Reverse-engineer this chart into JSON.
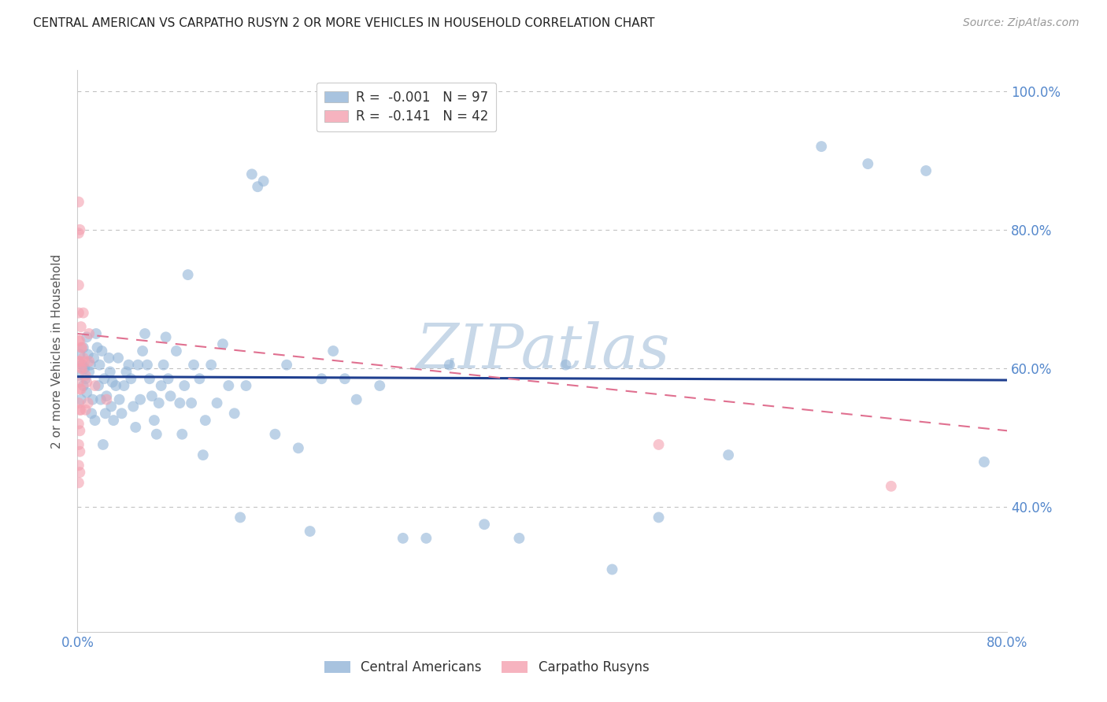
{
  "title": "CENTRAL AMERICAN VS CARPATHO RUSYN 2 OR MORE VEHICLES IN HOUSEHOLD CORRELATION CHART",
  "source": "Source: ZipAtlas.com",
  "ylabel": "2 or more Vehicles in Household",
  "x_min": 0.0,
  "x_max": 0.8,
  "y_min": 0.22,
  "y_max": 1.03,
  "x_ticks": [
    0.0,
    0.1,
    0.2,
    0.3,
    0.4,
    0.5,
    0.6,
    0.7,
    0.8
  ],
  "x_tick_labels": [
    "0.0%",
    "",
    "",
    "",
    "",
    "",
    "",
    "",
    "80.0%"
  ],
  "y_ticks": [
    0.4,
    0.6,
    0.8,
    1.0
  ],
  "y_tick_labels": [
    "40.0%",
    "60.0%",
    "80.0%",
    "100.0%"
  ],
  "legend_R1": "-0.001",
  "legend_N1": "97",
  "legend_R2": "-0.141",
  "legend_N2": "42",
  "color_blue": "#92B4D7",
  "color_pink": "#F4A0B0",
  "line_blue": "#1F3F8F",
  "line_pink": "#E07090",
  "grid_color": "#BBBBBB",
  "background": "#FFFFFF",
  "watermark": "ZIPatlas",
  "watermark_color": "#C8D8E8",
  "blue_scatter": [
    [
      0.001,
      0.59
    ],
    [
      0.002,
      0.62
    ],
    [
      0.003,
      0.555
    ],
    [
      0.004,
      0.605
    ],
    [
      0.005,
      0.63
    ],
    [
      0.005,
      0.575
    ],
    [
      0.006,
      0.6
    ],
    [
      0.007,
      0.585
    ],
    [
      0.008,
      0.645
    ],
    [
      0.008,
      0.565
    ],
    [
      0.009,
      0.62
    ],
    [
      0.01,
      0.595
    ],
    [
      0.011,
      0.605
    ],
    [
      0.012,
      0.535
    ],
    [
      0.013,
      0.555
    ],
    [
      0.014,
      0.615
    ],
    [
      0.015,
      0.525
    ],
    [
      0.016,
      0.65
    ],
    [
      0.017,
      0.63
    ],
    [
      0.018,
      0.575
    ],
    [
      0.019,
      0.605
    ],
    [
      0.02,
      0.555
    ],
    [
      0.021,
      0.625
    ],
    [
      0.022,
      0.49
    ],
    [
      0.023,
      0.585
    ],
    [
      0.024,
      0.535
    ],
    [
      0.025,
      0.56
    ],
    [
      0.027,
      0.615
    ],
    [
      0.028,
      0.595
    ],
    [
      0.029,
      0.545
    ],
    [
      0.03,
      0.58
    ],
    [
      0.031,
      0.525
    ],
    [
      0.033,
      0.575
    ],
    [
      0.035,
      0.615
    ],
    [
      0.036,
      0.555
    ],
    [
      0.038,
      0.535
    ],
    [
      0.04,
      0.575
    ],
    [
      0.042,
      0.595
    ],
    [
      0.044,
      0.605
    ],
    [
      0.046,
      0.585
    ],
    [
      0.048,
      0.545
    ],
    [
      0.05,
      0.515
    ],
    [
      0.052,
      0.605
    ],
    [
      0.054,
      0.555
    ],
    [
      0.056,
      0.625
    ],
    [
      0.058,
      0.65
    ],
    [
      0.06,
      0.605
    ],
    [
      0.062,
      0.585
    ],
    [
      0.064,
      0.56
    ],
    [
      0.066,
      0.525
    ],
    [
      0.068,
      0.505
    ],
    [
      0.07,
      0.55
    ],
    [
      0.072,
      0.575
    ],
    [
      0.074,
      0.605
    ],
    [
      0.076,
      0.645
    ],
    [
      0.078,
      0.585
    ],
    [
      0.08,
      0.56
    ],
    [
      0.085,
      0.625
    ],
    [
      0.088,
      0.55
    ],
    [
      0.09,
      0.505
    ],
    [
      0.092,
      0.575
    ],
    [
      0.095,
      0.735
    ],
    [
      0.098,
      0.55
    ],
    [
      0.1,
      0.605
    ],
    [
      0.105,
      0.585
    ],
    [
      0.108,
      0.475
    ],
    [
      0.11,
      0.525
    ],
    [
      0.115,
      0.605
    ],
    [
      0.12,
      0.55
    ],
    [
      0.125,
      0.635
    ],
    [
      0.13,
      0.575
    ],
    [
      0.135,
      0.535
    ],
    [
      0.14,
      0.385
    ],
    [
      0.145,
      0.575
    ],
    [
      0.15,
      0.88
    ],
    [
      0.155,
      0.862
    ],
    [
      0.16,
      0.87
    ],
    [
      0.17,
      0.505
    ],
    [
      0.18,
      0.605
    ],
    [
      0.19,
      0.485
    ],
    [
      0.2,
      0.365
    ],
    [
      0.21,
      0.585
    ],
    [
      0.22,
      0.625
    ],
    [
      0.23,
      0.585
    ],
    [
      0.24,
      0.555
    ],
    [
      0.26,
      0.575
    ],
    [
      0.28,
      0.355
    ],
    [
      0.3,
      0.355
    ],
    [
      0.32,
      0.605
    ],
    [
      0.35,
      0.375
    ],
    [
      0.38,
      0.355
    ],
    [
      0.42,
      0.605
    ],
    [
      0.46,
      0.31
    ],
    [
      0.5,
      0.385
    ],
    [
      0.56,
      0.475
    ],
    [
      0.64,
      0.92
    ],
    [
      0.68,
      0.895
    ],
    [
      0.73,
      0.885
    ],
    [
      0.78,
      0.465
    ]
  ],
  "pink_scatter": [
    [
      0.001,
      0.84
    ],
    [
      0.001,
      0.795
    ],
    [
      0.001,
      0.72
    ],
    [
      0.001,
      0.68
    ],
    [
      0.001,
      0.64
    ],
    [
      0.001,
      0.61
    ],
    [
      0.001,
      0.58
    ],
    [
      0.001,
      0.55
    ],
    [
      0.001,
      0.52
    ],
    [
      0.001,
      0.49
    ],
    [
      0.001,
      0.46
    ],
    [
      0.001,
      0.435
    ],
    [
      0.002,
      0.8
    ],
    [
      0.002,
      0.64
    ],
    [
      0.002,
      0.61
    ],
    [
      0.002,
      0.57
    ],
    [
      0.002,
      0.54
    ],
    [
      0.002,
      0.51
    ],
    [
      0.002,
      0.48
    ],
    [
      0.002,
      0.45
    ],
    [
      0.003,
      0.66
    ],
    [
      0.003,
      0.63
    ],
    [
      0.003,
      0.6
    ],
    [
      0.003,
      0.57
    ],
    [
      0.003,
      0.54
    ],
    [
      0.004,
      0.63
    ],
    [
      0.004,
      0.6
    ],
    [
      0.005,
      0.68
    ],
    [
      0.005,
      0.615
    ],
    [
      0.006,
      0.61
    ],
    [
      0.007,
      0.59
    ],
    [
      0.007,
      0.54
    ],
    [
      0.008,
      0.58
    ],
    [
      0.009,
      0.55
    ],
    [
      0.01,
      0.65
    ],
    [
      0.01,
      0.61
    ],
    [
      0.015,
      0.575
    ],
    [
      0.025,
      0.555
    ],
    [
      0.5,
      0.49
    ],
    [
      0.7,
      0.43
    ]
  ],
  "blue_line_x": [
    0.0,
    0.8
  ],
  "blue_line_y": [
    0.588,
    0.583
  ],
  "pink_line_x": [
    0.0,
    0.8
  ],
  "pink_line_y": [
    0.65,
    0.51
  ]
}
